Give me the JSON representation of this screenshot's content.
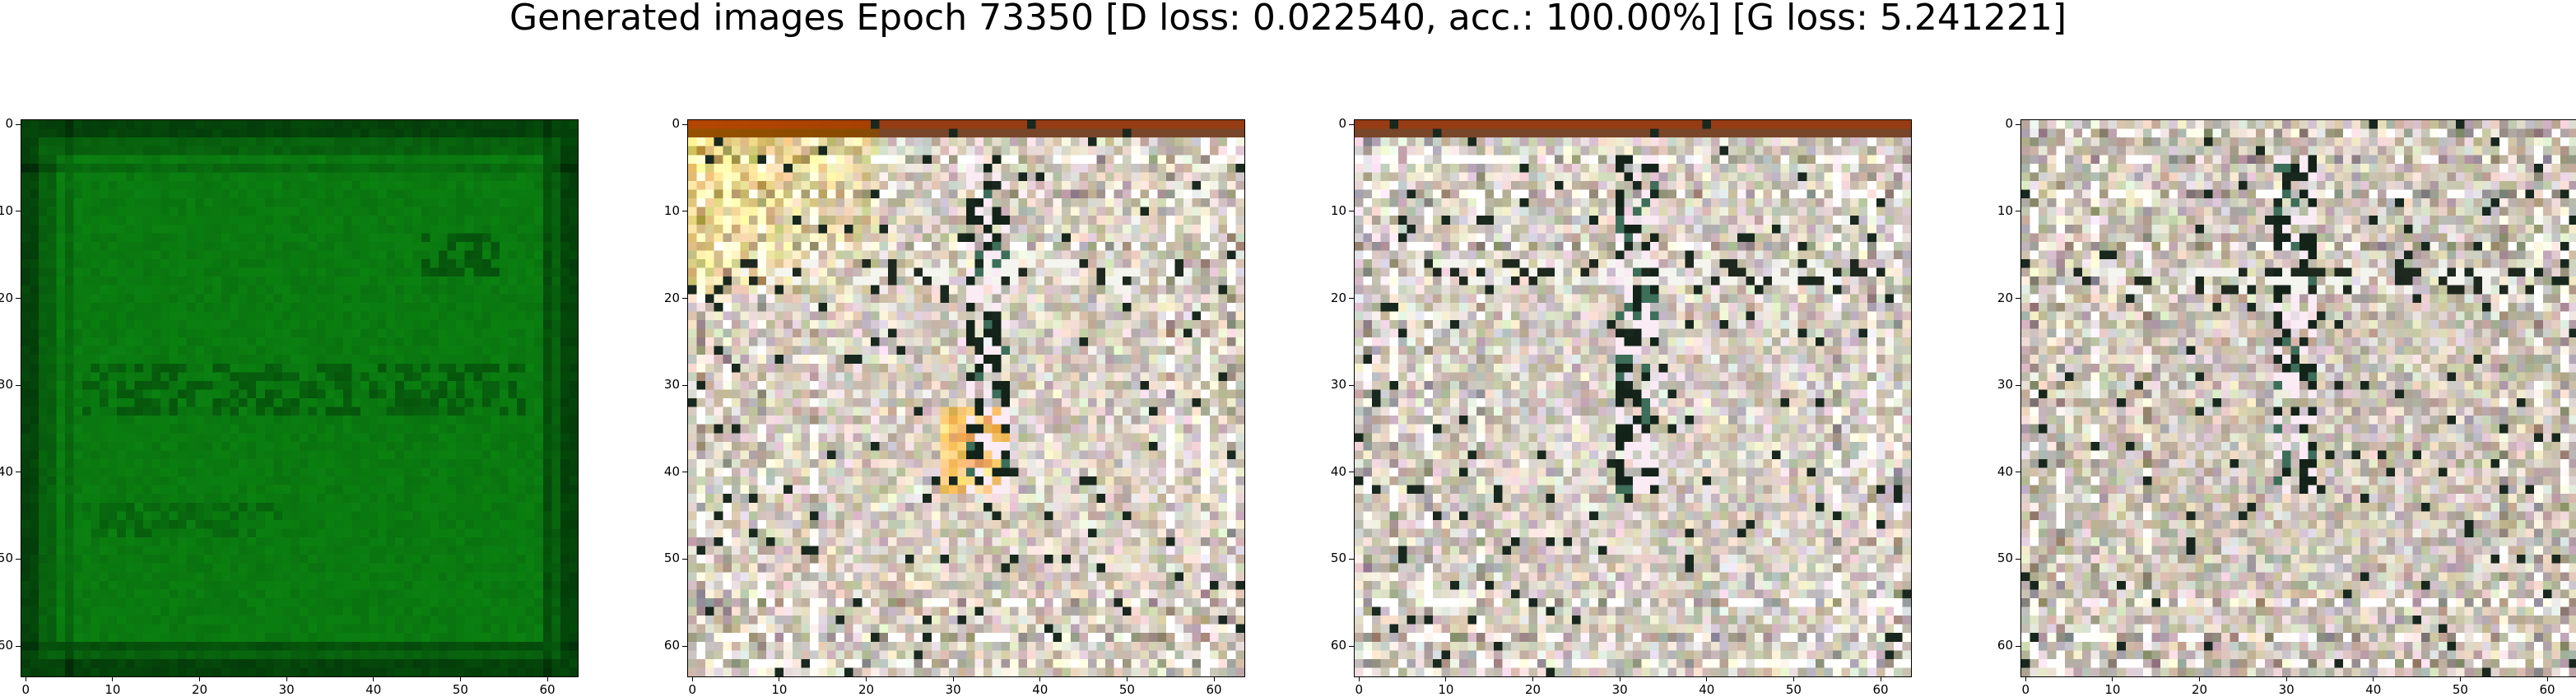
{
  "figure": {
    "suptitle": "Generated images Epoch 73350 [D loss: 0.022540, acc.: 100.00%] [G loss: 5.241221]"
  },
  "axes": {
    "x_ticks": [
      "0",
      "10",
      "20",
      "30",
      "40",
      "50",
      "60"
    ],
    "y_ticks": [
      "0",
      "10",
      "20",
      "30",
      "40",
      "50",
      "60"
    ],
    "xlim": [
      -0.5,
      63.5
    ],
    "ylim": [
      63.5,
      -0.5
    ]
  },
  "panels": [
    {
      "name": "sample-1",
      "dominant_color": "#0a7a10",
      "description_color": "green"
    },
    {
      "name": "sample-2",
      "dominant_color": "#d8cfc2",
      "accent_color": "#c9a040"
    },
    {
      "name": "sample-3",
      "dominant_color": "#d6cec4"
    },
    {
      "name": "sample-4",
      "dominant_color": "#cfc6ba"
    }
  ]
}
